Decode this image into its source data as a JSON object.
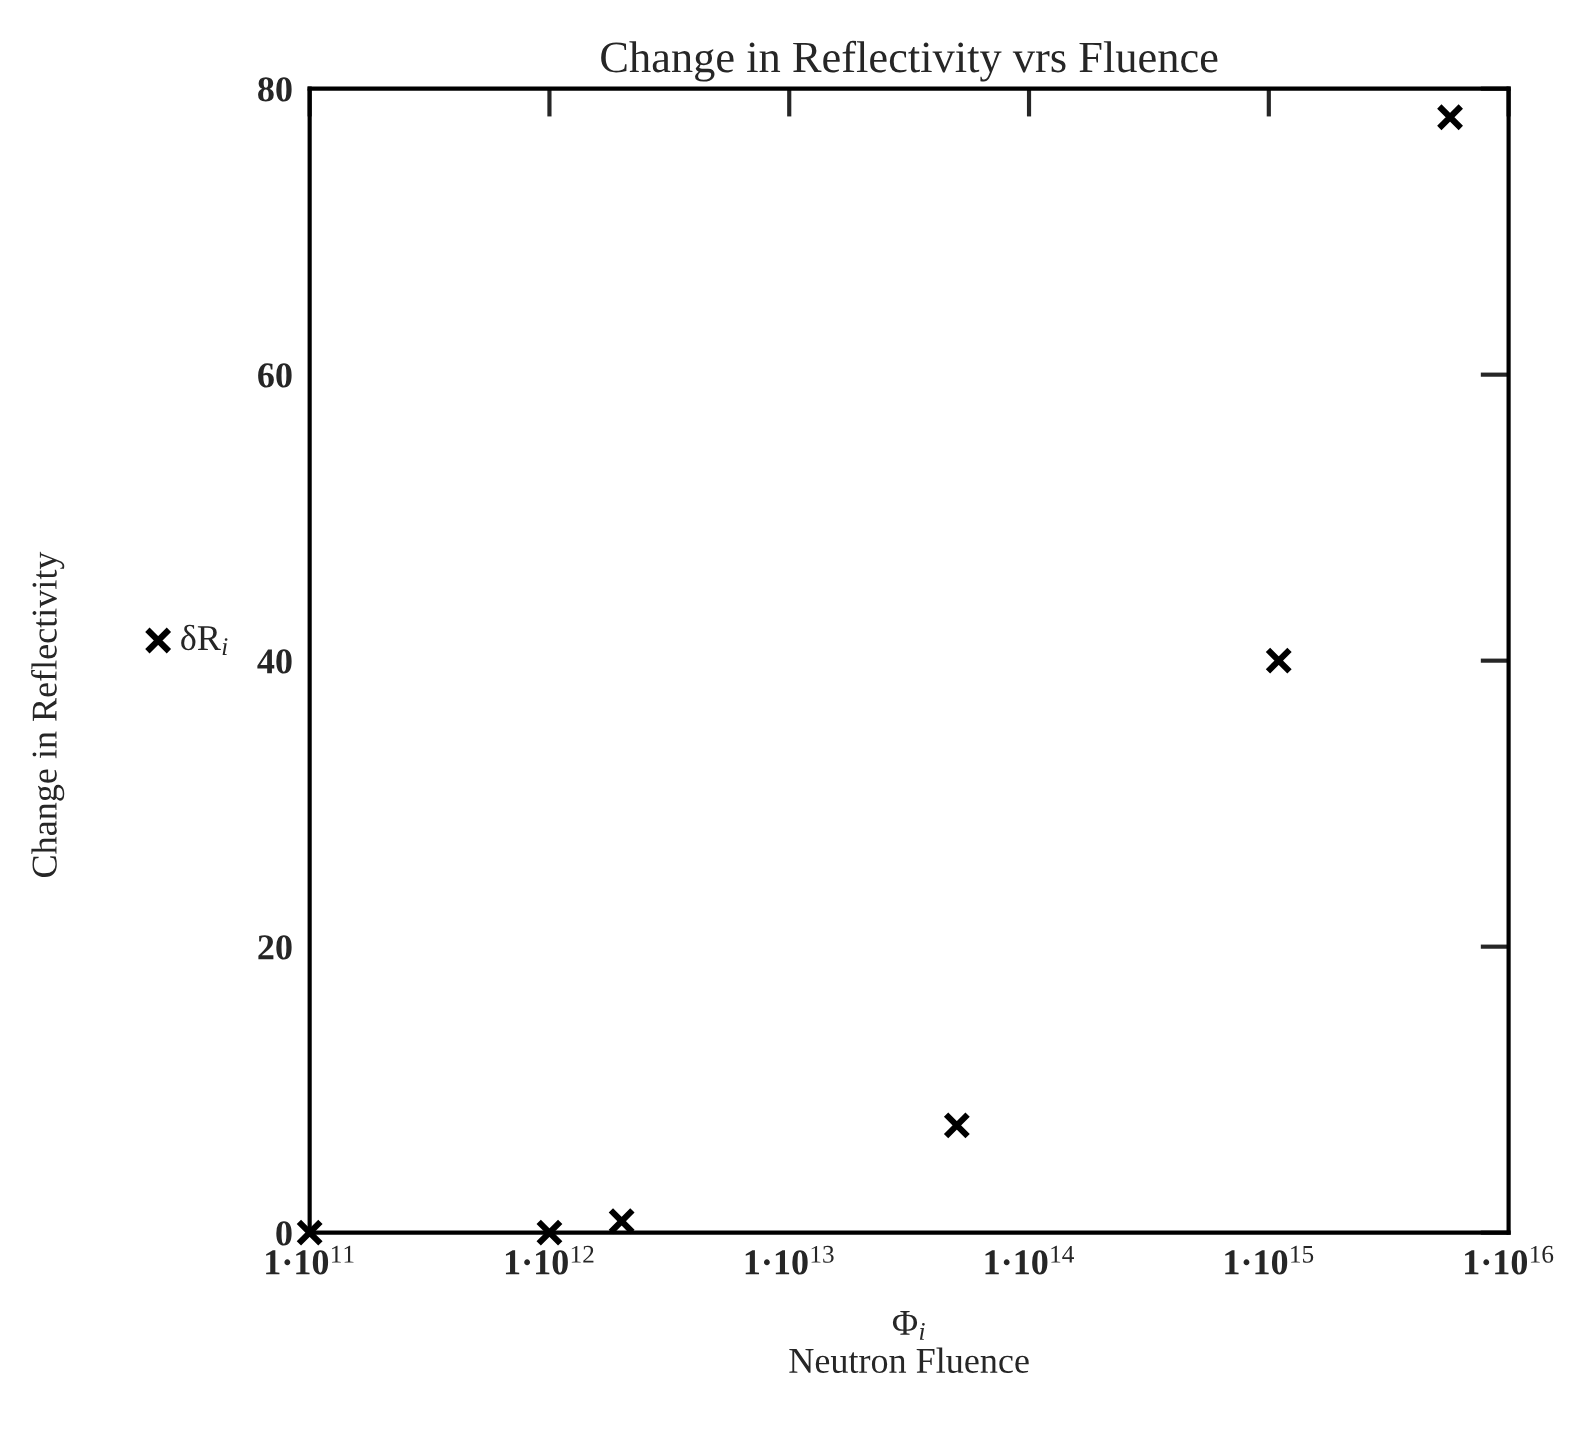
{
  "chart_data": {
    "type": "scatter",
    "title": "Change in Reflectivity vrs Fluence",
    "xlabel": "Φ$_{i}$\nNeutron Fluence",
    "annotations": [
      "Change in Reflectivity"
    ],
    "x": [
      100000000000.0,
      1000000000000.0,
      2000000000000.0,
      50000000000000.0,
      1100000000000000.0,
      5700000000000000.0
    ],
    "series": [
      {
        "name": "δR$_{i}$",
        "color": "#000000",
        "values": [
          0,
          0,
          0.8,
          7.5,
          40,
          78
        ]
      }
    ],
    "log": "x",
    "xlim": [
      100000000000.0,
      1e+16
    ],
    "ylim": [
      0,
      80
    ],
    "xticks": [
      {
        "value": 100000000000.0,
        "label": "1·10$^{11}$"
      },
      {
        "value": 1000000000000.0,
        "label": "1·10$^{12}$"
      },
      {
        "value": 10000000000000.0,
        "label": "1·10$^{13}$"
      },
      {
        "value": 100000000000000.0,
        "label": "1·10$^{14}$"
      },
      {
        "value": 1000000000000000.0,
        "label": "1·10$^{15}$"
      },
      {
        "value": 1e+16,
        "label": "1·10$^{16}$"
      }
    ],
    "yticks": [
      0,
      20,
      40,
      60,
      80
    ],
    "marker": "cross",
    "grid": false,
    "legend": "left"
  }
}
